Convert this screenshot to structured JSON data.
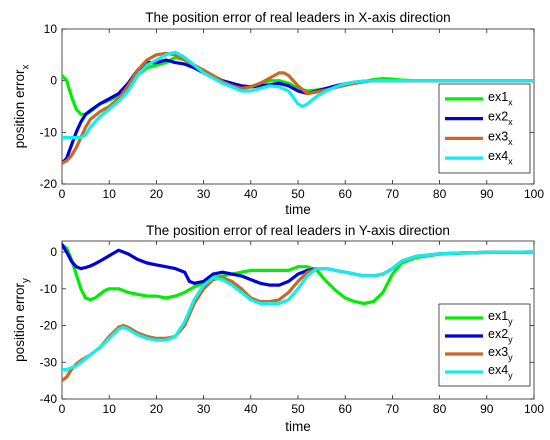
{
  "chart_data": [
    {
      "type": "line",
      "title": "The position error of real leaders in X-axis direction",
      "xlabel": "time",
      "ylabel": "position error",
      "ylabel_sub": "x",
      "xlim": [
        0,
        100
      ],
      "ylim": [
        -20,
        10
      ],
      "xticks": [
        0,
        10,
        20,
        30,
        40,
        50,
        60,
        70,
        80,
        90,
        100
      ],
      "yticks": [
        -20,
        -10,
        0,
        10
      ],
      "grid": false,
      "legend": "right",
      "series": [
        {
          "name": "ex1",
          "sub": "x",
          "color": "#00ee00",
          "x": [
            0,
            1,
            2,
            3,
            4,
            5,
            6,
            8,
            10,
            12,
            14,
            16,
            18,
            20,
            22,
            24,
            26,
            28,
            30,
            32,
            34,
            36,
            38,
            40,
            42,
            44,
            46,
            48,
            50,
            52,
            54,
            56,
            58,
            60,
            62,
            64,
            66,
            68,
            70,
            72,
            75,
            80,
            90,
            100
          ],
          "y": [
            1.0,
            0.0,
            -3.0,
            -5.5,
            -6.5,
            -6.5,
            -6.0,
            -4.5,
            -3.8,
            -3.0,
            -1.5,
            1.0,
            2.5,
            3.0,
            3.5,
            4.5,
            4.0,
            3.0,
            2.0,
            1.0,
            0.0,
            -1.0,
            -1.5,
            -1.2,
            -0.5,
            0.0,
            0.0,
            -0.5,
            -1.5,
            -2.0,
            -1.8,
            -1.5,
            -1.2,
            -0.8,
            -0.5,
            -0.2,
            0.2,
            0.4,
            0.3,
            0.1,
            0.0,
            0.0,
            0.0,
            0.0
          ]
        },
        {
          "name": "ex2",
          "sub": "x",
          "color": "#0000dd",
          "x": [
            0,
            1,
            2,
            3,
            4,
            5,
            6,
            8,
            10,
            12,
            14,
            16,
            18,
            20,
            22,
            24,
            26,
            28,
            30,
            32,
            34,
            36,
            38,
            40,
            42,
            44,
            46,
            48,
            50,
            52,
            54,
            56,
            58,
            60,
            62,
            64,
            66,
            68,
            70,
            72,
            75,
            80,
            90,
            100
          ],
          "y": [
            -16.0,
            -15.0,
            -12.5,
            -10.0,
            -8.0,
            -6.5,
            -5.8,
            -4.5,
            -3.5,
            -2.5,
            -0.5,
            2.0,
            3.5,
            3.5,
            4.0,
            3.5,
            3.2,
            2.5,
            1.5,
            0.8,
            0.0,
            -0.5,
            -1.0,
            -1.2,
            -1.0,
            -0.8,
            -0.5,
            -1.0,
            -2.0,
            -2.5,
            -2.0,
            -1.5,
            -1.0,
            -0.6,
            -0.3,
            -0.1,
            0.0,
            0.0,
            0.0,
            0.0,
            0.0,
            0.0,
            0.0,
            0.0
          ]
        },
        {
          "name": "ex3",
          "sub": "x",
          "color": "#cc6622",
          "x": [
            0,
            1,
            2,
            3,
            4,
            5,
            6,
            8,
            10,
            12,
            14,
            16,
            18,
            20,
            22,
            24,
            26,
            28,
            30,
            32,
            34,
            36,
            38,
            40,
            42,
            44,
            46,
            47,
            48,
            50,
            52,
            54,
            56,
            58,
            60,
            62,
            64,
            66,
            68,
            70,
            72,
            75,
            80,
            90,
            100
          ],
          "y": [
            -16.0,
            -15.5,
            -14.5,
            -13.0,
            -11.0,
            -9.0,
            -7.5,
            -6.0,
            -5.0,
            -3.5,
            -1.0,
            2.0,
            4.0,
            5.0,
            5.3,
            5.0,
            4.0,
            3.0,
            2.0,
            1.0,
            -0.2,
            -1.0,
            -1.5,
            -1.2,
            -0.5,
            0.5,
            1.5,
            1.5,
            1.0,
            -1.0,
            -2.5,
            -2.2,
            -1.8,
            -1.3,
            -0.9,
            -0.5,
            -0.2,
            0.0,
            0.0,
            0.0,
            0.0,
            0.0,
            0.0,
            0.0,
            0.0
          ]
        },
        {
          "name": "ex4",
          "sub": "x",
          "color": "#11eeee",
          "x": [
            0,
            1,
            2,
            3,
            4,
            5,
            6,
            8,
            10,
            12,
            14,
            16,
            18,
            20,
            22,
            24,
            26,
            28,
            30,
            32,
            34,
            36,
            38,
            40,
            42,
            44,
            46,
            48,
            50,
            51,
            52,
            54,
            56,
            58,
            60,
            62,
            64,
            66,
            68,
            70,
            72,
            75,
            80,
            90,
            100
          ],
          "y": [
            -11.0,
            -11.0,
            -11.0,
            -11.0,
            -11.0,
            -10.5,
            -9.0,
            -7.0,
            -5.5,
            -4.0,
            -2.0,
            1.0,
            3.0,
            4.0,
            5.0,
            5.5,
            4.5,
            3.0,
            1.5,
            0.5,
            -0.5,
            -1.2,
            -2.0,
            -2.0,
            -1.5,
            -1.0,
            -1.2,
            -2.0,
            -4.5,
            -5.0,
            -4.5,
            -3.0,
            -2.0,
            -1.2,
            -0.6,
            -0.3,
            -0.1,
            0.0,
            0.0,
            0.0,
            0.0,
            0.0,
            0.0,
            0.0,
            0.0
          ]
        }
      ]
    },
    {
      "type": "line",
      "title": "The position error of real leaders in Y-axis direction",
      "xlabel": "time",
      "ylabel": "position error",
      "ylabel_sub": "y",
      "xlim": [
        0,
        100
      ],
      "ylim": [
        -40,
        3
      ],
      "xticks": [
        0,
        10,
        20,
        30,
        40,
        50,
        60,
        70,
        80,
        90,
        100
      ],
      "yticks": [
        -40,
        -30,
        -20,
        -10,
        0
      ],
      "grid": false,
      "legend": "bottom-right",
      "series": [
        {
          "name": "ex1",
          "sub": "y",
          "color": "#00ee00",
          "x": [
            0,
            1,
            2,
            3,
            4,
            5,
            6,
            7,
            8,
            9,
            10,
            12,
            14,
            16,
            18,
            20,
            22,
            24,
            26,
            28,
            30,
            32,
            34,
            36,
            38,
            40,
            42,
            44,
            46,
            48,
            50,
            52,
            54,
            56,
            58,
            60,
            62,
            64,
            66,
            68,
            70,
            72,
            75,
            80,
            85,
            90,
            100
          ],
          "y": [
            2.0,
            1.0,
            -2.0,
            -6.0,
            -10.0,
            -12.5,
            -13.0,
            -12.5,
            -11.5,
            -10.5,
            -10.0,
            -10.0,
            -11.0,
            -11.5,
            -12.0,
            -12.0,
            -12.5,
            -12.0,
            -11.0,
            -9.5,
            -8.5,
            -7.0,
            -6.5,
            -6.0,
            -5.5,
            -5.0,
            -5.0,
            -5.0,
            -5.0,
            -5.0,
            -4.0,
            -4.0,
            -5.0,
            -8.0,
            -10.5,
            -12.5,
            -13.5,
            -14.0,
            -13.5,
            -11.0,
            -6.0,
            -3.0,
            -1.5,
            -0.6,
            -0.3,
            -0.1,
            0.0
          ]
        },
        {
          "name": "ex2",
          "sub": "y",
          "color": "#0000dd",
          "x": [
            0,
            1,
            2,
            3,
            4,
            5,
            6,
            7,
            8,
            10,
            12,
            14,
            16,
            18,
            20,
            22,
            24,
            26,
            27,
            28,
            30,
            32,
            34,
            36,
            38,
            40,
            42,
            44,
            46,
            48,
            50,
            52,
            54,
            56,
            58,
            60,
            62,
            64,
            66,
            68,
            70,
            72,
            75,
            80,
            85,
            90,
            100
          ],
          "y": [
            2.0,
            0.0,
            -2.5,
            -4.0,
            -4.5,
            -4.2,
            -3.8,
            -3.2,
            -2.5,
            -1.0,
            0.5,
            -0.5,
            -2.0,
            -3.0,
            -3.5,
            -4.0,
            -4.5,
            -5.5,
            -8.0,
            -8.5,
            -8.0,
            -6.0,
            -5.5,
            -6.0,
            -6.5,
            -7.5,
            -8.5,
            -9.0,
            -9.0,
            -8.0,
            -6.0,
            -5.0,
            -4.5,
            -4.5,
            -5.0,
            -5.5,
            -6.0,
            -6.5,
            -6.5,
            -6.0,
            -4.5,
            -2.5,
            -1.2,
            -0.5,
            -0.2,
            -0.1,
            0.0
          ]
        },
        {
          "name": "ex3",
          "sub": "y",
          "color": "#cc6622",
          "x": [
            0,
            1,
            2,
            3,
            4,
            6,
            8,
            10,
            12,
            13,
            14,
            16,
            18,
            20,
            22,
            24,
            26,
            28,
            30,
            32,
            34,
            36,
            38,
            40,
            42,
            44,
            46,
            48,
            50,
            52,
            54,
            56,
            58,
            60,
            62,
            64,
            66,
            68,
            70,
            72,
            75,
            80,
            85,
            90,
            100
          ],
          "y": [
            -35.0,
            -34.0,
            -32.0,
            -30.5,
            -29.5,
            -28.0,
            -26.0,
            -23.0,
            -20.5,
            -20.0,
            -20.5,
            -22.0,
            -23.0,
            -23.5,
            -23.5,
            -23.0,
            -20.0,
            -14.0,
            -10.0,
            -7.5,
            -7.0,
            -8.0,
            -10.0,
            -12.5,
            -13.5,
            -13.5,
            -13.0,
            -11.0,
            -8.0,
            -5.5,
            -4.5,
            -4.5,
            -5.0,
            -5.5,
            -6.0,
            -6.5,
            -6.5,
            -6.0,
            -4.5,
            -2.5,
            -1.2,
            -0.5,
            -0.2,
            -0.1,
            0.0
          ]
        },
        {
          "name": "ex4",
          "sub": "y",
          "color": "#11eeee",
          "x": [
            0,
            1,
            2,
            3,
            4,
            6,
            8,
            10,
            12,
            13,
            14,
            16,
            18,
            20,
            22,
            24,
            26,
            28,
            30,
            32,
            34,
            36,
            38,
            40,
            42,
            44,
            46,
            48,
            50,
            52,
            54,
            56,
            58,
            60,
            62,
            64,
            66,
            68,
            70,
            72,
            75,
            80,
            85,
            90,
            100
          ],
          "y": [
            -32.0,
            -32.0,
            -31.5,
            -31.0,
            -30.0,
            -28.0,
            -26.0,
            -23.5,
            -21.0,
            -20.5,
            -21.0,
            -22.5,
            -23.5,
            -24.0,
            -24.0,
            -23.0,
            -19.0,
            -13.0,
            -9.0,
            -7.0,
            -7.5,
            -9.0,
            -11.0,
            -13.0,
            -14.0,
            -14.0,
            -14.0,
            -13.0,
            -10.0,
            -6.5,
            -4.5,
            -4.5,
            -5.0,
            -5.5,
            -6.0,
            -6.5,
            -6.5,
            -6.0,
            -4.5,
            -2.5,
            -1.2,
            -0.5,
            -0.2,
            -0.1,
            0.0
          ]
        }
      ]
    }
  ]
}
